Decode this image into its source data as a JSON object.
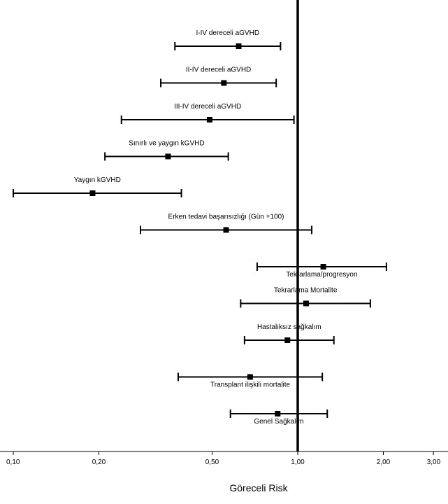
{
  "chart_data": {
    "type": "forest",
    "xlabel": "Göreceli Risk",
    "xscale": "log",
    "xlim": [
      0.1,
      3.0
    ],
    "reference_line": 1.0,
    "ticks": [
      {
        "value": 0.1,
        "label": "0,10"
      },
      {
        "value": 0.2,
        "label": "0,20"
      },
      {
        "value": 0.5,
        "label": "0,50"
      },
      {
        "value": 1.0,
        "label": "1,00"
      },
      {
        "value": 2.0,
        "label": "2,00"
      },
      {
        "value": 3.0,
        "label": "3,00"
      }
    ],
    "rows": [
      {
        "label": "I-IV dereceli aGVHD",
        "estimate": 0.62,
        "low": 0.37,
        "high": 0.87,
        "label_pos": "above"
      },
      {
        "label": "II-IV dereceli aGVHD",
        "estimate": 0.55,
        "low": 0.33,
        "high": 0.84,
        "label_pos": "above"
      },
      {
        "label": "III-IV dereceli aGVHD",
        "estimate": 0.49,
        "low": 0.24,
        "high": 0.97,
        "label_pos": "above"
      },
      {
        "label": "Sınırlı ve yaygın kGVHD",
        "estimate": 0.35,
        "low": 0.21,
        "high": 0.57,
        "label_pos": "above"
      },
      {
        "label": "Yaygın kGVHD",
        "estimate": 0.19,
        "low": 0.1,
        "high": 0.39,
        "label_pos": "above"
      },
      {
        "label": "Erken tedavi başarısızlığı (Gün +100)",
        "estimate": 0.56,
        "low": 0.28,
        "high": 1.12,
        "label_pos": "above"
      },
      {
        "label": "Tekrarlama/progresyon",
        "estimate": 1.23,
        "low": 0.72,
        "high": 2.05,
        "label_pos": "below"
      },
      {
        "label": "Tekrarlama Mortalite",
        "estimate": 1.07,
        "low": 0.63,
        "high": 1.8,
        "label_pos": "above"
      },
      {
        "label": "Hastalıksız sağkalım",
        "estimate": 0.92,
        "low": 0.65,
        "high": 1.34,
        "label_pos": "above"
      },
      {
        "label": "Transplant ilişkili mortalite",
        "estimate": 0.68,
        "low": 0.38,
        "high": 1.22,
        "label_pos": "below"
      },
      {
        "label": "Genel Sağkalım",
        "estimate": 0.85,
        "low": 0.58,
        "high": 1.27,
        "label_pos": "below"
      }
    ]
  }
}
